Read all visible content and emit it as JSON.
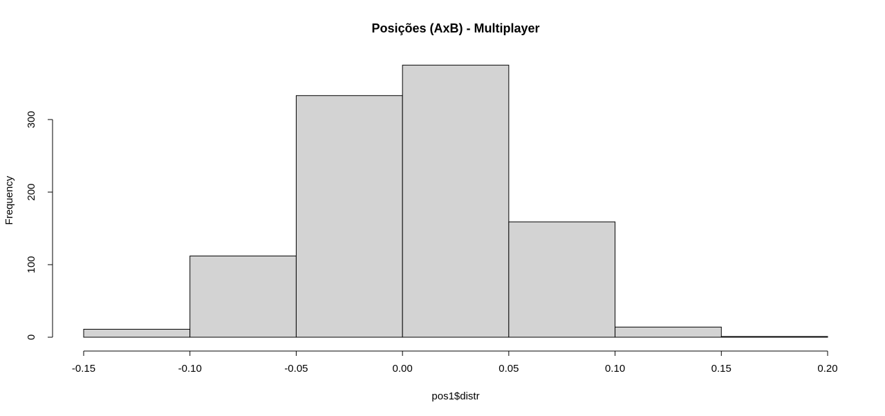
{
  "chart_data": {
    "type": "bar",
    "title": "Posições (AxB) - Multiplayer",
    "xlabel": "pos1$distr",
    "ylabel": "Frequency",
    "bins": [
      {
        "from": -0.15,
        "to": -0.1,
        "count": 11
      },
      {
        "from": -0.1,
        "to": -0.05,
        "count": 112
      },
      {
        "from": -0.05,
        "to": 0.0,
        "count": 333
      },
      {
        "from": 0.0,
        "to": 0.05,
        "count": 375
      },
      {
        "from": 0.05,
        "to": 0.1,
        "count": 159
      },
      {
        "from": 0.1,
        "to": 0.15,
        "count": 14
      },
      {
        "from": 0.15,
        "to": 0.2,
        "count": 1
      }
    ],
    "xticks": [
      "-0.15",
      "-0.10",
      "-0.05",
      "0.00",
      "0.05",
      "0.10",
      "0.15",
      "0.20"
    ],
    "yticks": [
      "0",
      "100",
      "200",
      "300"
    ],
    "xlim": [
      -0.15,
      0.2
    ],
    "ylim": [
      0,
      375
    ],
    "bar_color": "#d3d3d3",
    "grid": false
  }
}
